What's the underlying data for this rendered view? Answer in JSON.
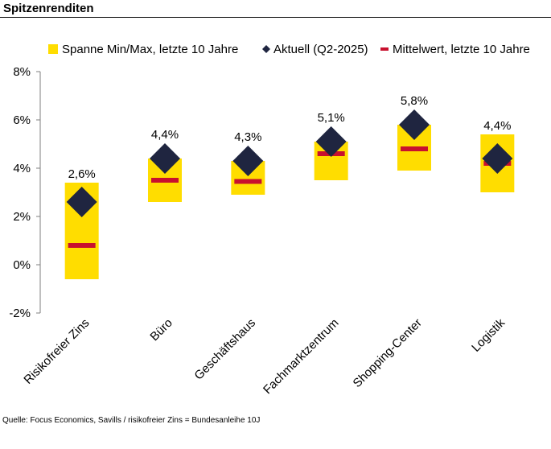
{
  "title": "Spitzenrenditen",
  "source": "Quelle: Focus Economics, Savills / risikofreier Zins = Bundesanleihe 10J",
  "chart_data": {
    "type": "range-bar",
    "categories": [
      "Risikofreier Zins",
      "Büro",
      "Geschäftshaus",
      "Fachmarktzentrum",
      "Shopping-Center",
      "Logistik"
    ],
    "series": [
      {
        "name": "Spanne Min/Max, letzte 10 Jahre",
        "color": "#FFDD00",
        "min": [
          -0.6,
          2.6,
          2.9,
          3.5,
          3.9,
          3.0
        ],
        "max": [
          3.4,
          4.4,
          4.3,
          5.1,
          5.8,
          5.4
        ]
      },
      {
        "name": "Aktuell (Q2-2025)",
        "color": "#1F2540",
        "values": [
          2.6,
          4.4,
          4.3,
          5.1,
          5.8,
          4.4
        ],
        "labels": [
          "2,6%",
          "4,4%",
          "4,3%",
          "5,1%",
          "5,8%",
          "4,4%"
        ]
      },
      {
        "name": "Mittelwert, letzte 10 Jahre",
        "color": "#C8102E",
        "values": [
          0.8,
          3.5,
          3.45,
          4.6,
          4.8,
          4.2
        ]
      }
    ],
    "ylim": [
      -2,
      8
    ],
    "yticks": [
      -2,
      0,
      2,
      4,
      6,
      8
    ],
    "ytick_labels": [
      "-2%",
      "0%",
      "2%",
      "4%",
      "6%",
      "8%"
    ],
    "grid": false,
    "legend": "top"
  }
}
